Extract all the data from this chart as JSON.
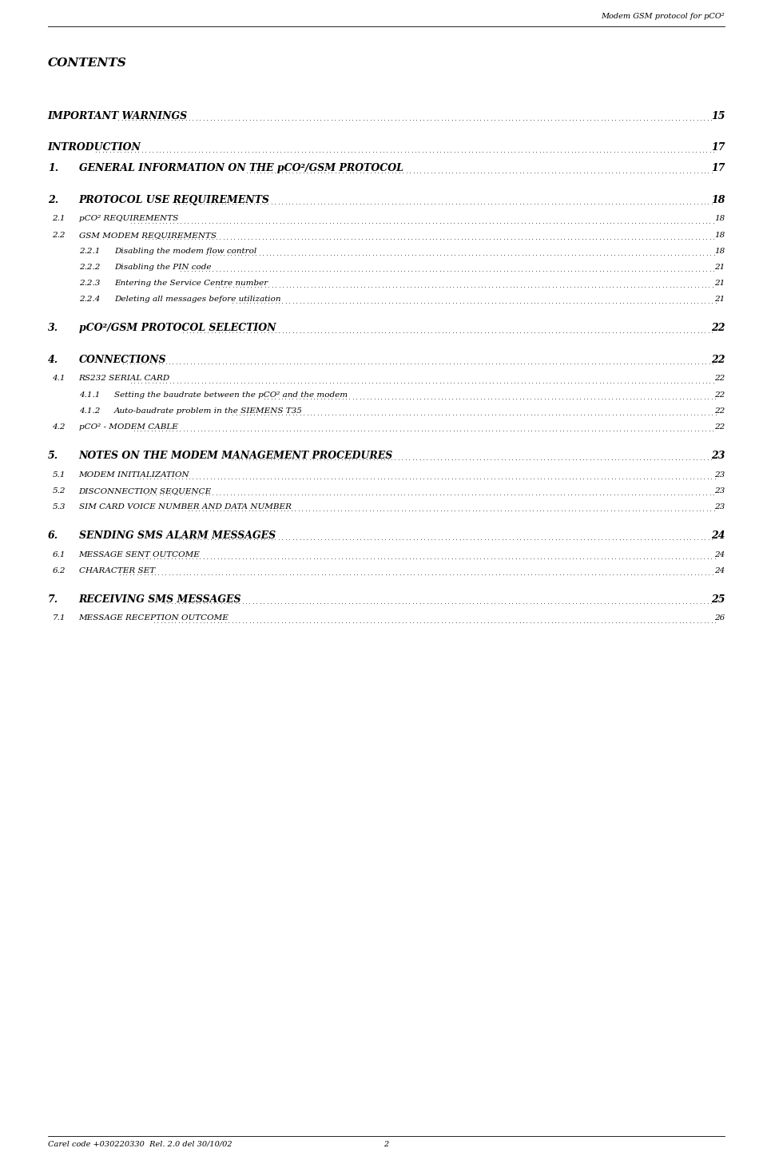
{
  "header": "Modem GSM protocol for pCO²",
  "contents_title": "CONTENTS",
  "footer_left": "Carel code +030220330  Rel. 2.0 del 30/10/02",
  "footer_center": "2",
  "bg_color": "#ffffff",
  "entries": [
    {
      "level": 0,
      "text": "IMPORTANT WARNINGS",
      "page": "15",
      "extra_before": 1
    },
    {
      "level": 0,
      "text": "INTRODUCTION",
      "page": "17",
      "extra_before": 1
    },
    {
      "level": 1,
      "text": "GENERAL INFORMATION ON THE pCO²/GSM PROTOCOL",
      "page": "17",
      "number": "1.",
      "extra_before": 0
    },
    {
      "level": 1,
      "text": "PROTOCOL USE REQUIREMENTS",
      "page": "18",
      "number": "2.",
      "extra_before": 1
    },
    {
      "level": 2,
      "text": "pCO² REQUIREMENTS",
      "page": "18",
      "number": "2.1",
      "extra_before": 0
    },
    {
      "level": 2,
      "text": "GSM MODEM REQUIREMENTS",
      "page": "18",
      "number": "2.2",
      "extra_before": 0
    },
    {
      "level": 3,
      "text": "Disabling the modem flow control",
      "page": "18",
      "number": "2.2.1",
      "extra_before": 0
    },
    {
      "level": 3,
      "text": "Disabling the PIN code",
      "page": "21",
      "number": "2.2.2",
      "extra_before": 0
    },
    {
      "level": 3,
      "text": "Entering the Service Centre number",
      "page": "21",
      "number": "2.2.3",
      "extra_before": 0
    },
    {
      "level": 3,
      "text": "Deleting all messages before utilization",
      "page": "21",
      "number": "2.2.4",
      "extra_before": 0
    },
    {
      "level": 1,
      "text": "pCO²/GSM PROTOCOL SELECTION",
      "page": "22",
      "number": "3.",
      "extra_before": 1
    },
    {
      "level": 1,
      "text": "CONNECTIONS",
      "page": "22",
      "number": "4.",
      "extra_before": 1
    },
    {
      "level": 2,
      "text": "RS232 SERIAL CARD",
      "page": "22",
      "number": "4.1",
      "extra_before": 0
    },
    {
      "level": 3,
      "text": "Setting the baudrate between the pCO² and the modem",
      "page": "22",
      "number": "4.1.1",
      "extra_before": 0
    },
    {
      "level": 3,
      "text": "Auto-baudrate problem in the SIEMENS T35",
      "page": "22",
      "number": "4.1.2",
      "extra_before": 0
    },
    {
      "level": 2,
      "text": "pCO² - MODEM CABLE",
      "page": "22",
      "number": "4.2",
      "extra_before": 0
    },
    {
      "level": 1,
      "text": "NOTES ON THE MODEM MANAGEMENT PROCEDURES",
      "page": "23",
      "number": "5.",
      "extra_before": 1
    },
    {
      "level": 2,
      "text": "MODEM INITIALIZATION",
      "page": "23",
      "number": "5.1",
      "extra_before": 0
    },
    {
      "level": 2,
      "text": "DISCONNECTION SEQUENCE",
      "page": "23",
      "number": "5.2",
      "extra_before": 0
    },
    {
      "level": 2,
      "text": "SIM CARD VOICE NUMBER AND DATA NUMBER",
      "page": "23",
      "number": "5.3",
      "extra_before": 0
    },
    {
      "level": 1,
      "text": "SENDING SMS ALARM MESSAGES",
      "page": "24",
      "number": "6.",
      "extra_before": 1
    },
    {
      "level": 2,
      "text": "MESSAGE SENT OUTCOME",
      "page": "24",
      "number": "6.1",
      "extra_before": 0
    },
    {
      "level": 2,
      "text": "CHARACTER SET",
      "page": "24",
      "number": "6.2",
      "extra_before": 0
    },
    {
      "level": 1,
      "text": "RECEIVING SMS MESSAGES",
      "page": "25",
      "number": "7.",
      "extra_before": 1
    },
    {
      "level": 2,
      "text": "MESSAGE RECEPTION OUTCOME",
      "page": "26",
      "number": "7.1",
      "extra_before": 0
    }
  ]
}
